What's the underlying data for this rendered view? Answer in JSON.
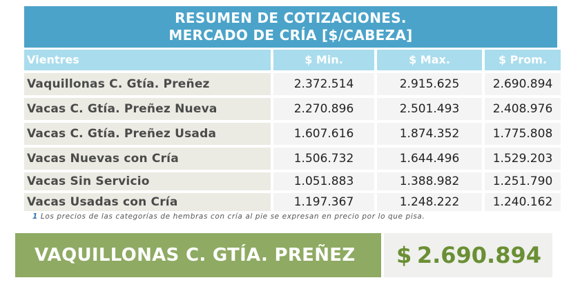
{
  "title": {
    "line1": "RESUMEN DE COTIZACIONES.",
    "line2": "MERCADO DE CRÍA [$/CABEZA]"
  },
  "table": {
    "headers": [
      "Vientres",
      "$ Min.",
      "$ Max.",
      "$ Prom."
    ],
    "rows": [
      {
        "category": "Vaquillonas C. Gtía. Preñez",
        "min": "2.372.514",
        "max": "2.915.625",
        "prom": "2.690.894"
      },
      {
        "category": "Vacas C. Gtía. Preñez Nueva",
        "min": "2.270.896",
        "max": "2.501.493",
        "prom": "2.408.976"
      },
      {
        "category": "Vacas C. Gtía. Preñez Usada",
        "min": "1.607.616",
        "max": "1.874.352",
        "prom": "1.775.808"
      },
      {
        "category": "Vacas Nuevas con Cría",
        "min": "1.506.732",
        "max": "1.644.496",
        "prom": "1.529.203"
      },
      {
        "category": "Vacas Sin Servicio",
        "min": "1.051.883",
        "max": "1.388.982",
        "prom": "1.251.790"
      },
      {
        "category": "Vacas Usadas con Cría",
        "min": "1.197.367",
        "max": "1.248.222",
        "prom": "1.240.162"
      }
    ]
  },
  "note": {
    "marker": "1",
    "text": "Los precios de las categorías de hembras con cría al pie se expresan en precio por lo que pisa."
  },
  "highlight": {
    "label": "VAQUILLONAS C. GTÍA. PREÑEZ",
    "currency": "$",
    "value": "2.690.894"
  },
  "colors": {
    "title_bg": "#4ba3c9",
    "header_bg": "#a9dced",
    "highlight_bg": "#8faa63",
    "highlight_value": "#6a8f34"
  }
}
